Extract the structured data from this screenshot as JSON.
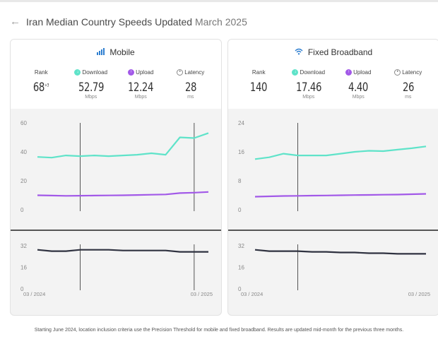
{
  "page": {
    "back_icon": "arrow-left-icon",
    "title": "Iran Median Country Speeds Updated",
    "date": "March 2025",
    "footer": "Starting June 2024, location inclusion criteria use the Precision Threshold for mobile and fixed broadband. Results are updated mid-month for the previous three months."
  },
  "colors": {
    "download": "#5fe3c9",
    "upload": "#a259e8",
    "latency": "#2f3240",
    "marker": "#555555"
  },
  "panels": [
    {
      "title": "Mobile",
      "icon": "signal-bars-icon",
      "stats": {
        "rank": {
          "label": "Rank",
          "value": "68",
          "delta": "+3"
        },
        "download": {
          "label": "Download",
          "value": "52.79",
          "unit": "Mbps"
        },
        "upload": {
          "label": "Upload",
          "value": "12.24",
          "unit": "Mbps"
        },
        "latency": {
          "label": "Latency",
          "value": "28",
          "unit": "ms"
        }
      }
    },
    {
      "title": "Fixed Broadband",
      "icon": "wifi-icon",
      "stats": {
        "rank": {
          "label": "Rank",
          "value": "140",
          "delta": ""
        },
        "download": {
          "label": "Download",
          "value": "17.46",
          "unit": "Mbps"
        },
        "upload": {
          "label": "Upload",
          "value": "4.40",
          "unit": "Mbps"
        },
        "latency": {
          "label": "Latency",
          "value": "26",
          "unit": "ms"
        }
      }
    }
  ],
  "chart_data": [
    {
      "type": "line",
      "title": "Mobile",
      "x_start_label": "03 / 2024",
      "x_end_label": "03 / 2025",
      "speed_yticks": [
        "60",
        "40",
        "20",
        "0"
      ],
      "speed_ylim": [
        0,
        60
      ],
      "latency_yticks": [
        "32",
        "16",
        "0"
      ],
      "latency_ylim": [
        0,
        32
      ],
      "markers_at_index": [
        3,
        11
      ],
      "series": [
        {
          "name": "Download",
          "values": [
            36.5,
            36,
            37.5,
            37,
            37.5,
            37,
            37.5,
            38,
            39,
            38,
            50,
            49.5,
            53
          ]
        },
        {
          "name": "Upload",
          "values": [
            10,
            9.8,
            9.6,
            9.7,
            9.8,
            9.9,
            10,
            10.2,
            10.4,
            10.6,
            11.5,
            11.8,
            12.3
          ]
        },
        {
          "name": "Latency",
          "values": [
            29,
            28,
            28,
            29,
            29,
            29,
            28.5,
            28.5,
            28.5,
            28.5,
            27.5,
            27.5,
            27.5
          ]
        }
      ]
    },
    {
      "type": "line",
      "title": "Fixed Broadband",
      "x_start_label": "03 / 2024",
      "x_end_label": "03 / 2025",
      "speed_yticks": [
        "24",
        "16",
        "8",
        "0"
      ],
      "speed_ylim": [
        0,
        24
      ],
      "latency_yticks": [
        "32",
        "16",
        "0"
      ],
      "latency_ylim": [
        0,
        32
      ],
      "markers_at_index": [
        3
      ],
      "series": [
        {
          "name": "Download",
          "values": [
            14,
            14.5,
            15.5,
            15,
            15,
            15,
            15.5,
            16,
            16.3,
            16.2,
            16.6,
            17,
            17.5
          ]
        },
        {
          "name": "Upload",
          "values": [
            3.6,
            3.7,
            3.8,
            3.85,
            3.9,
            3.95,
            4,
            4.05,
            4.1,
            4.15,
            4.2,
            4.3,
            4.4
          ]
        },
        {
          "name": "Latency",
          "values": [
            29,
            28,
            28,
            28,
            27.5,
            27.5,
            27,
            27,
            26.5,
            26.5,
            26,
            26,
            26
          ]
        }
      ]
    }
  ]
}
